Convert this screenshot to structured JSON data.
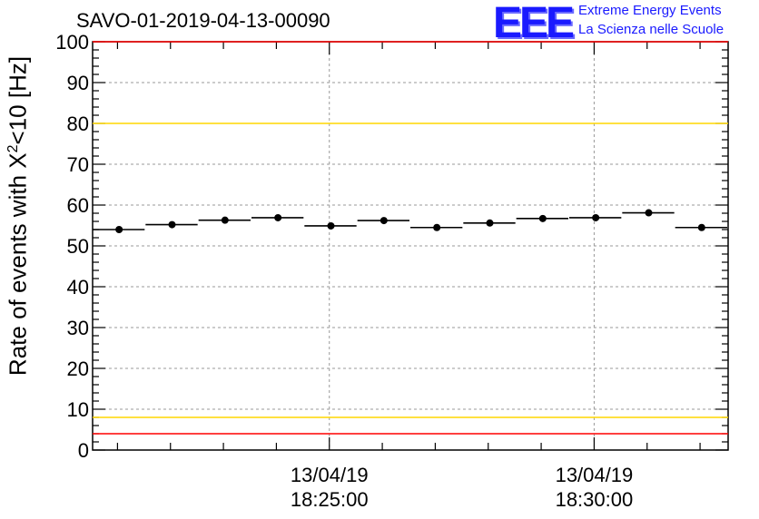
{
  "title": "SAVO-01-2019-04-13-00090",
  "logo": {
    "mark": "EEE",
    "line1": "Extreme Energy Events",
    "line2": "La Scienza nelle Scuole"
  },
  "colors": {
    "red_limit": "#ff0000",
    "yellow_limit": "#ffd700",
    "logo_blue": "#1a1aff",
    "grid": "#999999"
  },
  "chart_data": {
    "type": "scatter",
    "title": "SAVO-01-2019-04-13-00090",
    "ylabel_main": "Rate of events with X",
    "ylabel_sup": "2",
    "ylabel_tail": "<10 [Hz]",
    "ylim": [
      0,
      100
    ],
    "yticks": [
      "0",
      "10",
      "20",
      "30",
      "40",
      "50",
      "60",
      "70",
      "80",
      "90",
      "100"
    ],
    "x_range_bins": [
      0,
      12
    ],
    "x_ticks": [
      {
        "bin": 4.47,
        "date": "13/04/19",
        "time": "18:25:00"
      },
      {
        "bin": 9.47,
        "date": "13/04/19",
        "time": "18:30:00"
      }
    ],
    "points": [
      54.0,
      55.2,
      56.3,
      56.9,
      54.9,
      56.2,
      54.5,
      55.6,
      56.7,
      56.9,
      58.1,
      54.5
    ],
    "reference_lines": [
      {
        "name": "red-upper",
        "value": 100,
        "color": "#ff0000"
      },
      {
        "name": "yellow-upper",
        "value": 80,
        "color": "#ffd700"
      },
      {
        "name": "yellow-lower",
        "value": 8,
        "color": "#ffd700"
      },
      {
        "name": "red-lower",
        "value": 4,
        "color": "#ff0000"
      }
    ],
    "grid": true
  }
}
